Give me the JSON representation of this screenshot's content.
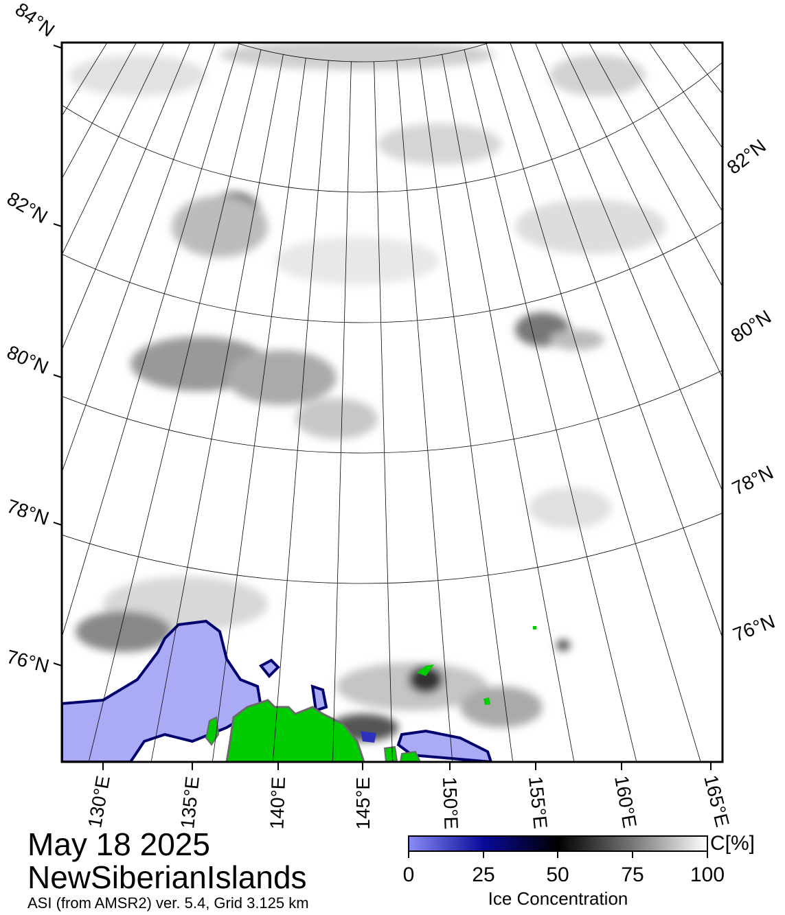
{
  "map": {
    "title_date": "May 18 2025",
    "region": "NewSiberianIslands",
    "source": "ASI (from AMSR2) ver. 5.4,  Grid 3.125 km",
    "lat_labels_left": [
      "84°N",
      "82°N",
      "80°N",
      "78°N",
      "76°N"
    ],
    "lat_labels_right": [
      "82°N",
      "80°N",
      "78°N",
      "76°N"
    ],
    "lon_labels": [
      "130°E",
      "135°E",
      "140°E",
      "145°E",
      "150°E",
      "155°E",
      "160°E",
      "165°E"
    ],
    "colors": {
      "land": "#00cc00",
      "open_water": "#aaaaf5",
      "ice_high": "#ffffff",
      "ice_mid": "#000000",
      "ice_low": "#00006e",
      "grid": "#000000"
    }
  },
  "colorbar": {
    "title": "Ice Concentration",
    "unit": "C[%]",
    "ticks": [
      "0",
      "25",
      "50",
      "75",
      "100"
    ],
    "range": [
      0,
      100
    ]
  }
}
